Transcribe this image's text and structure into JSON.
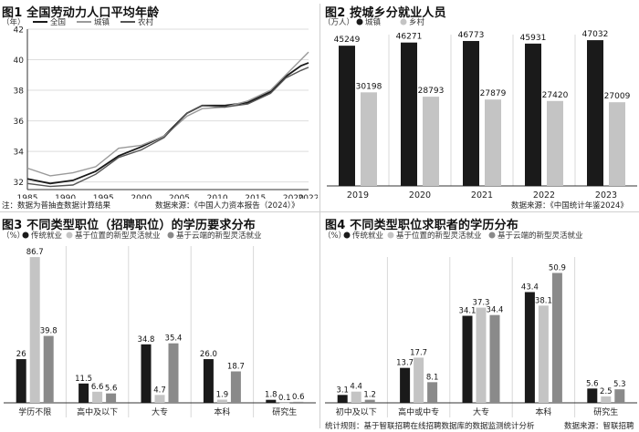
{
  "colors": {
    "black": "#1a1a1a",
    "light": "#c4c4c4",
    "mid": "#8a8a8a",
    "line_total": "#1a1a1a",
    "line_urban": "#9a9a9a",
    "line_rural": "#555555",
    "grid": "#dddddd"
  },
  "chart_data": [
    {
      "id": "fig1",
      "type": "line",
      "title": "图1 全国劳动力人口平均年龄",
      "unit": "（年）",
      "series": [
        {
          "name": "全国",
          "color_key": "line_total",
          "values": [
            32.2,
            31.9,
            32.1,
            32.7,
            33.7,
            34.3,
            35.0,
            36.5,
            37.0,
            37.0,
            37.2,
            37.9,
            38.9,
            39.6,
            39.8
          ]
        },
        {
          "name": "城镇",
          "color_key": "line_urban",
          "values": [
            32.9,
            32.4,
            32.6,
            33.0,
            34.2,
            34.4,
            35.0,
            36.3,
            36.8,
            36.9,
            37.3,
            38.0,
            39.0,
            40.0,
            40.5
          ]
        },
        {
          "name": "农村",
          "color_key": "line_rural",
          "values": [
            31.9,
            31.7,
            31.8,
            32.5,
            33.6,
            34.1,
            34.9,
            36.5,
            37.0,
            36.9,
            37.1,
            37.8,
            38.8,
            39.3,
            39.5
          ]
        }
      ],
      "x": [
        1985,
        1988,
        1991,
        1994,
        1997,
        2000,
        2003,
        2006,
        2008,
        2011,
        2014,
        2017,
        2019,
        2021,
        2022
      ],
      "xticks": [
        1985,
        1990,
        1995,
        2000,
        2005,
        2010,
        2015,
        2020,
        2022
      ],
      "ylim": [
        31.5,
        42
      ],
      "yticks": [
        32,
        34,
        36,
        38,
        40,
        42
      ],
      "note_left": "注：数据为普抽查数据计算结果",
      "note_right": "数据来源：《中国人力资本报告（2024）》"
    },
    {
      "id": "fig2",
      "type": "bar",
      "title": "图2 按城乡分就业人员",
      "unit": "（万人）",
      "categories": [
        "2019",
        "2020",
        "2021",
        "2022",
        "2023"
      ],
      "series": [
        {
          "name": "城镇",
          "color_key": "black",
          "values": [
            45249,
            46271,
            46773,
            45931,
            47032
          ]
        },
        {
          "name": "乡村",
          "color_key": "light",
          "values": [
            30198,
            28793,
            27879,
            27420,
            27009
          ]
        }
      ],
      "ylim": [
        0,
        50000
      ],
      "note_right": "数据来源：《中国统计年鉴2024》"
    },
    {
      "id": "fig3",
      "type": "bar",
      "title": "图3 不同类型职位（招聘职位）的学历要求分布",
      "unit": "（%）",
      "categories": [
        "学历不限",
        "高中及以下",
        "大专",
        "本科",
        "研究生"
      ],
      "series": [
        {
          "name": "传统就业",
          "color_key": "black",
          "values": [
            26,
            11.5,
            34.8,
            26.0,
            1.8
          ]
        },
        {
          "name": "基于位置的新型灵活就业",
          "color_key": "light",
          "values": [
            86.7,
            6.6,
            4.7,
            1.9,
            0.1
          ]
        },
        {
          "name": "基于云端的新型灵活就业",
          "color_key": "mid",
          "values": [
            39.8,
            5.6,
            35.4,
            18.7,
            0.6
          ]
        }
      ],
      "labels": [
        [
          "26",
          "86.7",
          "39.8"
        ],
        [
          "11.5",
          "6.6",
          "5.6"
        ],
        [
          "34.8",
          "4.7",
          "35.4"
        ],
        [
          "26.0",
          "1.9",
          "18.7"
        ],
        [
          "1.8",
          "0.1",
          "0.6"
        ]
      ],
      "ylim": [
        0,
        90
      ]
    },
    {
      "id": "fig4",
      "type": "bar",
      "title": "图4 不同类型职位求职者的学历分布",
      "unit": "（%）",
      "categories": [
        "初中及以下",
        "高中或中专",
        "大专",
        "本科",
        "研究生"
      ],
      "series": [
        {
          "name": "传统就业",
          "color_key": "black",
          "values": [
            3.1,
            13.7,
            34.1,
            43.4,
            5.6
          ]
        },
        {
          "name": "基于位置的新型灵活就业",
          "color_key": "light",
          "values": [
            4.4,
            17.7,
            37.3,
            38.1,
            2.5
          ]
        },
        {
          "name": "基于云端的新型灵活就业",
          "color_key": "mid",
          "values": [
            1.2,
            8.1,
            34.4,
            50.9,
            5.3
          ]
        }
      ],
      "labels": [
        [
          "3.1",
          "4.4",
          "1.2"
        ],
        [
          "13.7",
          "17.7",
          "8.1"
        ],
        [
          "34.1",
          "37.3",
          "34.4"
        ],
        [
          "43.4",
          "38.1",
          "50.9"
        ],
        [
          "5.6",
          "2.5",
          "5.3"
        ]
      ],
      "ylim": [
        0,
        55
      ],
      "note_left": "统计规则：基于智联招聘在线招聘数据库的数据监测统计分析",
      "note_right": "数据来源：智联招聘"
    }
  ]
}
